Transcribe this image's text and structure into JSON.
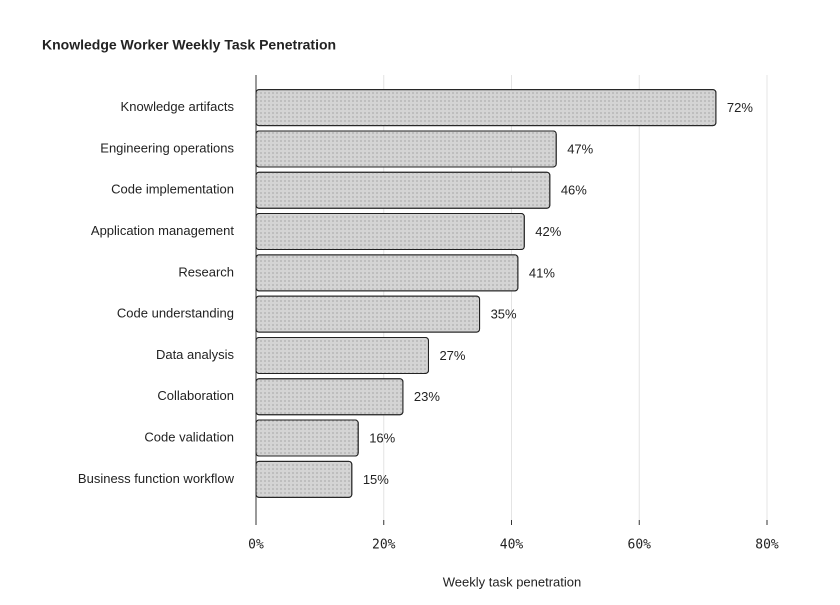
{
  "chart_data": {
    "type": "bar",
    "orientation": "horizontal",
    "title": "Knowledge Worker Weekly Task Penetration",
    "x_label": "Weekly task penetration",
    "categories": [
      "Knowledge artifacts",
      "Engineering operations",
      "Code implementation",
      "Application management",
      "Research",
      "Code understanding",
      "Data analysis",
      "Collaboration",
      "Code validation",
      "Business function workflow"
    ],
    "values": [
      72,
      47,
      46,
      42,
      41,
      35,
      27,
      23,
      16,
      15
    ],
    "value_labels": [
      "72%",
      "47%",
      "46%",
      "42%",
      "41%",
      "35%",
      "27%",
      "23%",
      "16%",
      "15%"
    ],
    "color": "#d4d4d4",
    "xlim": [
      0,
      80
    ],
    "xticks": [
      {
        "value": 0,
        "label": "0%"
      },
      {
        "value": 20,
        "label": "20%"
      },
      {
        "value": 40,
        "label": "40%"
      },
      {
        "value": 60,
        "label": "60%"
      },
      {
        "value": 80,
        "label": "80%"
      }
    ],
    "grid": true
  }
}
